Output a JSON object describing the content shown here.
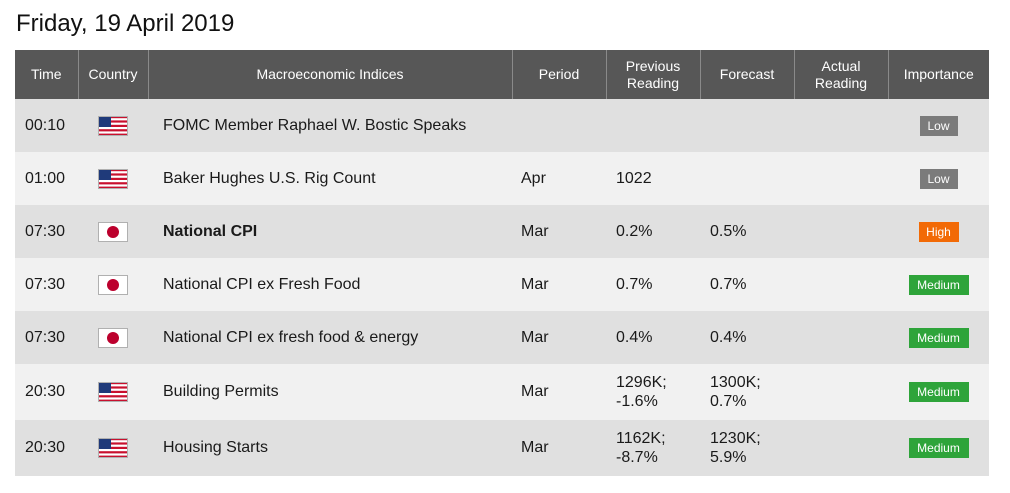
{
  "page": {
    "title": "Friday, 19 April 2019"
  },
  "table": {
    "headers": {
      "time": "Time",
      "country": "Country",
      "index": "Macroeconomic Indices",
      "period": "Period",
      "previous_line1": "Previous",
      "previous_line2": "Reading",
      "forecast": "Forecast",
      "actual_line1": "Actual",
      "actual_line2": "Reading",
      "importance": "Importance"
    },
    "rows": [
      {
        "time": "00:10",
        "country_icon": "us-flag-icon",
        "index": "FOMC Member Raphael W. Bostic Speaks",
        "bold": false,
        "period": "",
        "previous_1": "",
        "previous_2": "",
        "forecast_1": "",
        "forecast_2": "",
        "actual": "",
        "importance": "Low",
        "importance_level": "low"
      },
      {
        "time": "01:00",
        "country_icon": "us-flag-icon",
        "index": "Baker Hughes U.S. Rig Count",
        "bold": false,
        "period": "Apr",
        "previous_1": "1022",
        "previous_2": "",
        "forecast_1": "",
        "forecast_2": "",
        "actual": "",
        "importance": "Low",
        "importance_level": "low"
      },
      {
        "time": "07:30",
        "country_icon": "japan-flag-icon",
        "index": "National CPI",
        "bold": true,
        "period": "Mar",
        "previous_1": "0.2%",
        "previous_2": "",
        "forecast_1": "0.5%",
        "forecast_2": "",
        "actual": "",
        "importance": "High",
        "importance_level": "high"
      },
      {
        "time": "07:30",
        "country_icon": "japan-flag-icon",
        "index": "National CPI ex Fresh Food",
        "bold": false,
        "period": "Mar",
        "previous_1": "0.7%",
        "previous_2": "",
        "forecast_1": "0.7%",
        "forecast_2": "",
        "actual": "",
        "importance": "Medium",
        "importance_level": "medium"
      },
      {
        "time": "07:30",
        "country_icon": "japan-flag-icon",
        "index": "National CPI ex fresh food & energy",
        "bold": false,
        "period": "Mar",
        "previous_1": "0.4%",
        "previous_2": "",
        "forecast_1": "0.4%",
        "forecast_2": "",
        "actual": "",
        "importance": "Medium",
        "importance_level": "medium"
      },
      {
        "time": "20:30",
        "country_icon": "us-flag-icon",
        "index": "Building Permits",
        "bold": false,
        "period": "Mar",
        "previous_1": "1296K;",
        "previous_2": "-1.6%",
        "forecast_1": "1300K;",
        "forecast_2": "0.7%",
        "actual": "",
        "importance": "Medium",
        "importance_level": "medium"
      },
      {
        "time": "20:30",
        "country_icon": "us-flag-icon",
        "index": "Housing Starts",
        "bold": false,
        "period": "Mar",
        "previous_1": "1162K;",
        "previous_2": "-8.7%",
        "forecast_1": "1230K;",
        "forecast_2": "5.9%",
        "actual": "",
        "importance": "Medium",
        "importance_level": "medium"
      }
    ]
  },
  "colors": {
    "header_bg": "#575757",
    "row_odd": "#e0e0e0",
    "row_even": "#f1f1f1",
    "low": "#7b7b7b",
    "high": "#f26a06",
    "medium": "#2ea43a"
  }
}
